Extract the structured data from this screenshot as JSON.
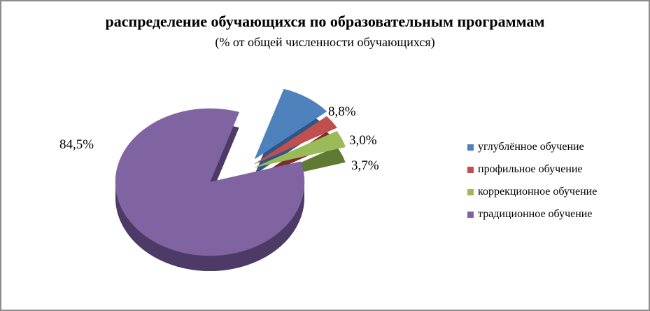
{
  "chart_data": {
    "type": "pie",
    "title": "распределение обучающихся по образовательным программам",
    "subtitle": "(% от общей численности обучающихся)",
    "categories": [
      "углублённое обучение",
      "профильное обучение",
      "коррекционное обучение",
      "традиционное обучение"
    ],
    "values": [
      8.8,
      3.0,
      3.7,
      84.5
    ],
    "labels": [
      "8,8%",
      "3,0%",
      "3,7%",
      "84,5%"
    ],
    "colors": [
      "#4f81bd",
      "#c0504d",
      "#9bbb59",
      "#8064a2"
    ],
    "side_colors": [
      "#2e5687",
      "#7d2e2c",
      "#5f7a32",
      "#4d3a66"
    ],
    "legend_position": "right",
    "style": "3d-exploded"
  }
}
